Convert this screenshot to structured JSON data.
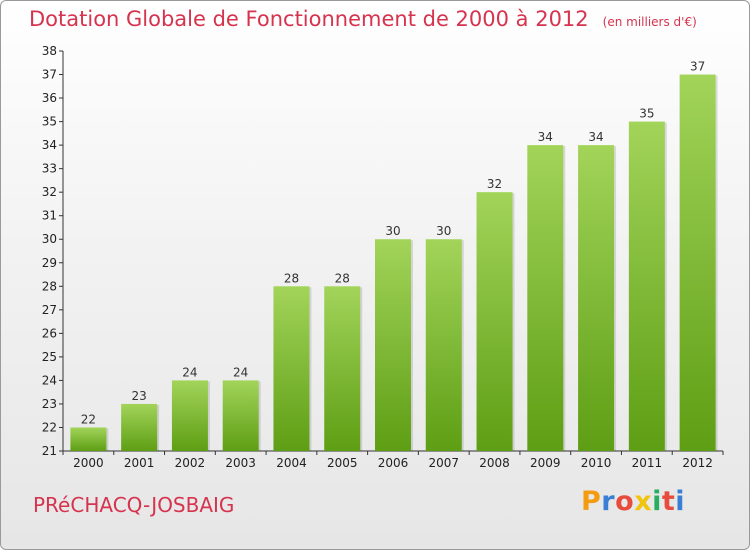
{
  "chart_data": {
    "type": "bar",
    "title": "Dotation Globale de Fonctionnement de 2000 à 2012",
    "subtitle": "(en milliers d'€)",
    "categories": [
      "2000",
      "2001",
      "2002",
      "2003",
      "2004",
      "2005",
      "2006",
      "2007",
      "2008",
      "2009",
      "2010",
      "2011",
      "2012"
    ],
    "values": [
      22,
      23,
      24,
      24,
      28,
      28,
      30,
      30,
      32,
      34,
      34,
      35,
      37
    ],
    "xlabel": "",
    "ylabel": "",
    "ylim": [
      21,
      38
    ],
    "yticks": [
      21,
      22,
      23,
      24,
      25,
      26,
      27,
      28,
      29,
      30,
      31,
      32,
      33,
      34,
      35,
      36,
      37,
      38
    ],
    "grid": false,
    "bar_color_light": "#a2d45a",
    "bar_color_dark": "#5e9e14"
  },
  "footer": {
    "commune": "PRéCHACQ-JOSBAIG",
    "brand_letters": [
      "P",
      "r",
      "o",
      "x",
      "i",
      "t",
      "i"
    ],
    "brand_colors": [
      "#f39c12",
      "#3b7fd4",
      "#e74c3c",
      "#f1c40f",
      "#27ae60",
      "#e74c3c",
      "#3b7fd4"
    ]
  }
}
